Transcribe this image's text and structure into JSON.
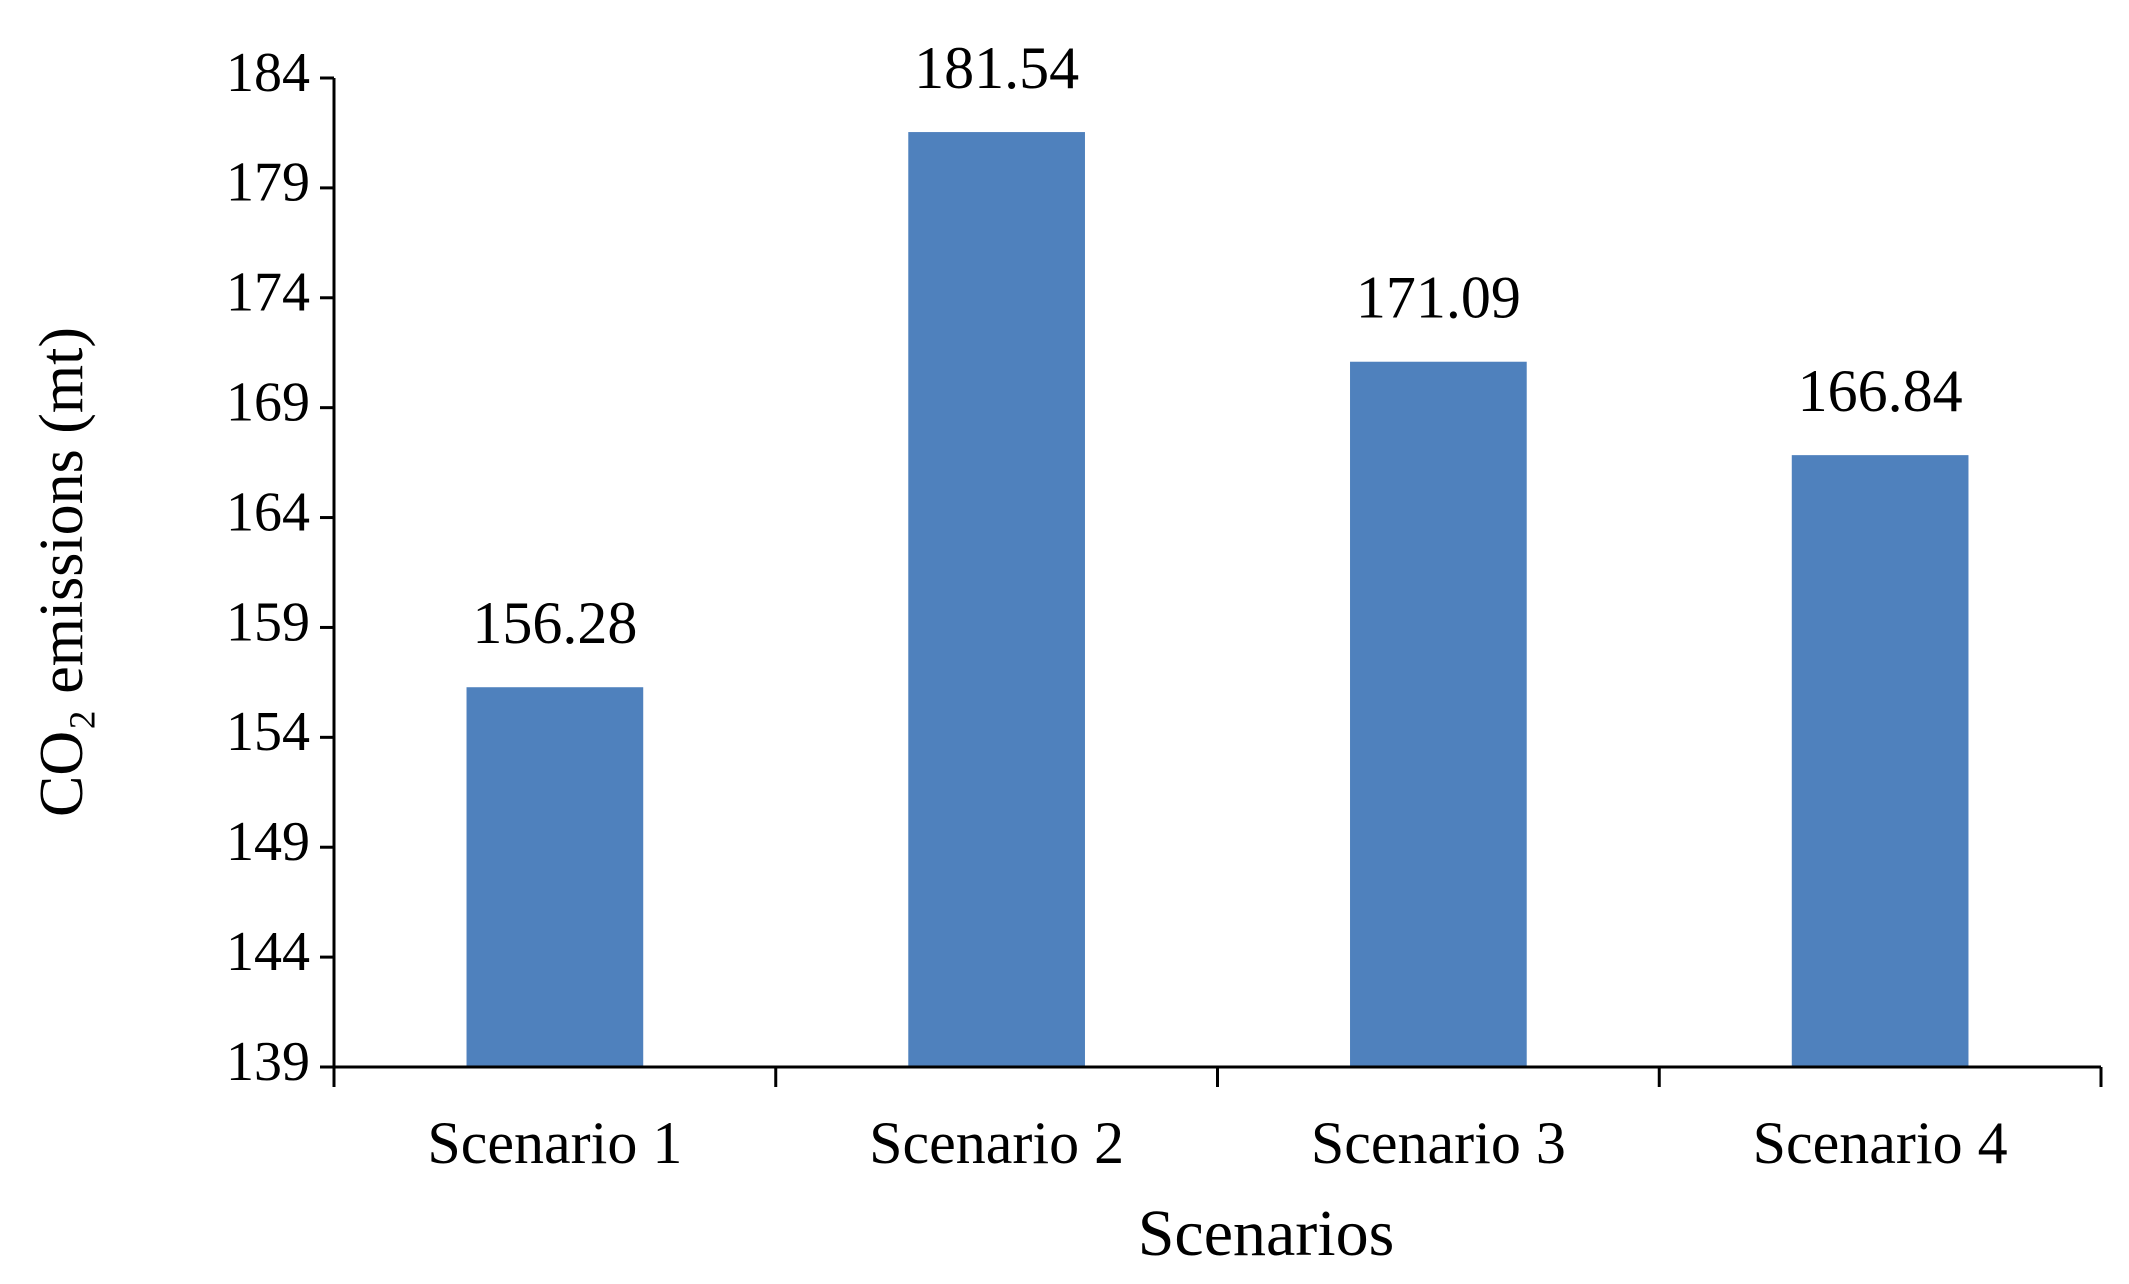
{
  "chart_data": {
    "type": "bar",
    "x_label": "Scenarios",
    "y_label": "CO₂ emissions  (mt)",
    "categories": [
      "Scenario 1",
      "Scenario 2",
      "Scenario 3",
      "Scenario 4"
    ],
    "values": [
      156.28,
      181.54,
      171.09,
      166.84
    ],
    "color": "#4f81bd",
    "ylim": [
      139,
      184
    ],
    "yticks": [
      139,
      144,
      149,
      154,
      159,
      164,
      169,
      174,
      179,
      184
    ]
  }
}
